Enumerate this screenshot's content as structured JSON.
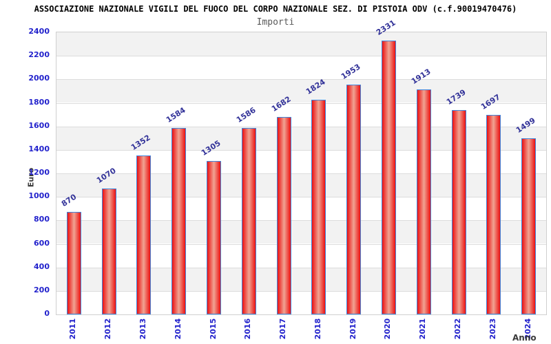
{
  "chart_data": {
    "type": "bar",
    "title": "ASSOCIAZIONE NAZIONALE VIGILI DEL FUOCO DEL CORPO NAZIONALE SEZ. DI PISTOIA ODV (c.f.90019470476)",
    "subtitle": "Importi",
    "xlabel": "Anno",
    "ylabel": "Euro",
    "categories": [
      "2011",
      "2012",
      "2013",
      "2014",
      "2015",
      "2016",
      "2017",
      "2018",
      "2019",
      "2020",
      "2021",
      "2022",
      "2023",
      "2024"
    ],
    "values": [
      870,
      1070,
      1352,
      1584,
      1305,
      1586,
      1682,
      1824,
      1953,
      2331,
      1913,
      1739,
      1697,
      1499
    ],
    "ylim": [
      0,
      2400
    ],
    "ytick_step": 200,
    "legend": "none",
    "grid": "horizontal lines every 200 with alternating gray/white bands of 200 units, gray topmost",
    "colors": {
      "title": "#000000",
      "subtitle": "#595959",
      "axis_title": "#3a3a3a",
      "tick_label": "#2222cc",
      "value_label": "#333399",
      "bar_edge": "#ec1111",
      "bar_center": "#f0a493",
      "bar_border": "#3f86dd",
      "band_gray": "#f2f2f2",
      "band_white": "#ffffff",
      "gridline": "#dcdcdc",
      "plot_border": "#cfcfcf"
    }
  }
}
